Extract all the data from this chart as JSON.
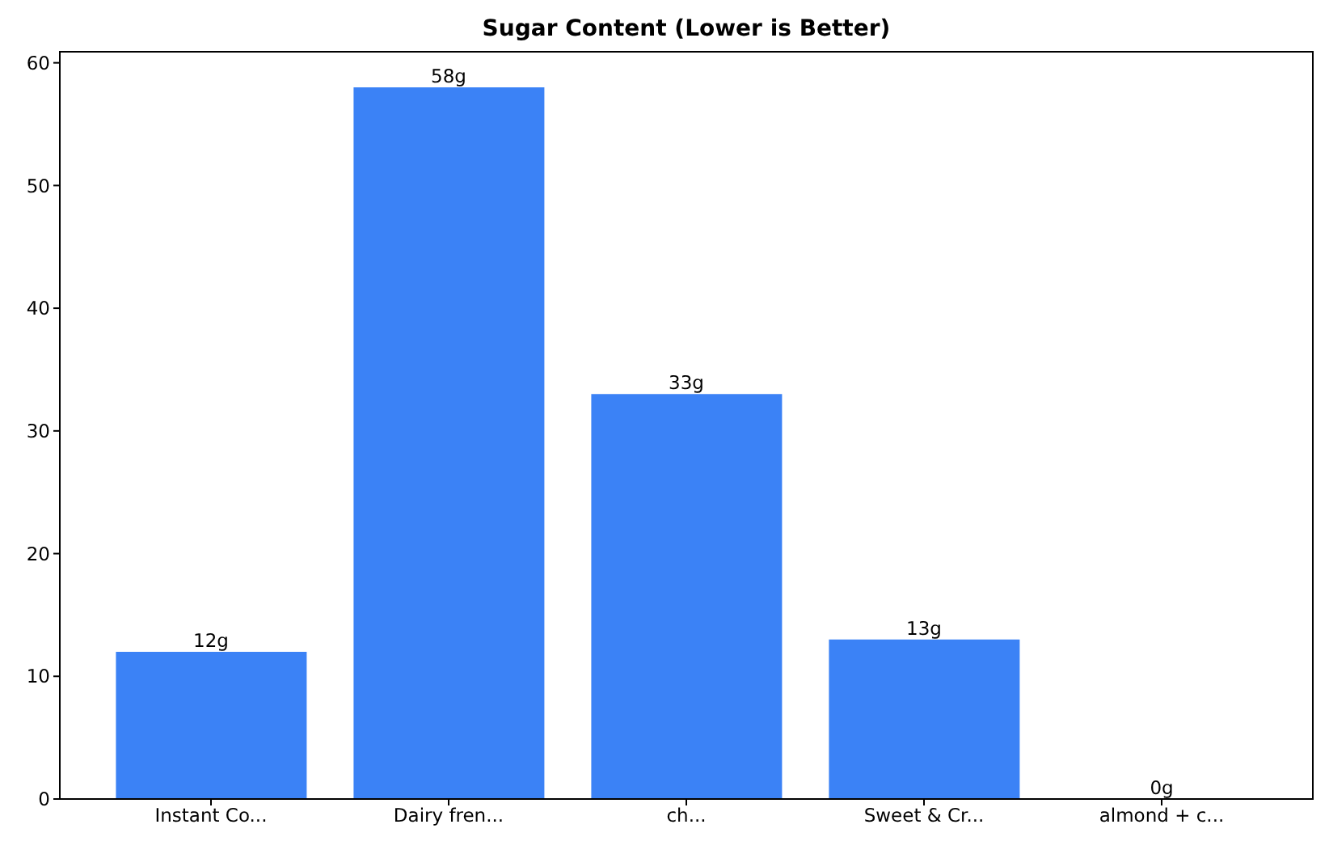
{
  "chart_data": {
    "type": "bar",
    "title": "Sugar Content (Lower is Better)",
    "categories": [
      "Instant Co...",
      "Dairy fren...",
      "ch...",
      "Sweet & Cr...",
      "almond + c..."
    ],
    "values": [
      12,
      58,
      33,
      13,
      0
    ],
    "value_labels": [
      "12g",
      "58g",
      "33g",
      "13g",
      "0g"
    ],
    "color": "#3b82f6",
    "ylim": [
      0,
      60.9
    ],
    "yticks": [
      0,
      10,
      20,
      30,
      40,
      50,
      60
    ],
    "grid": false,
    "legend": false
  }
}
